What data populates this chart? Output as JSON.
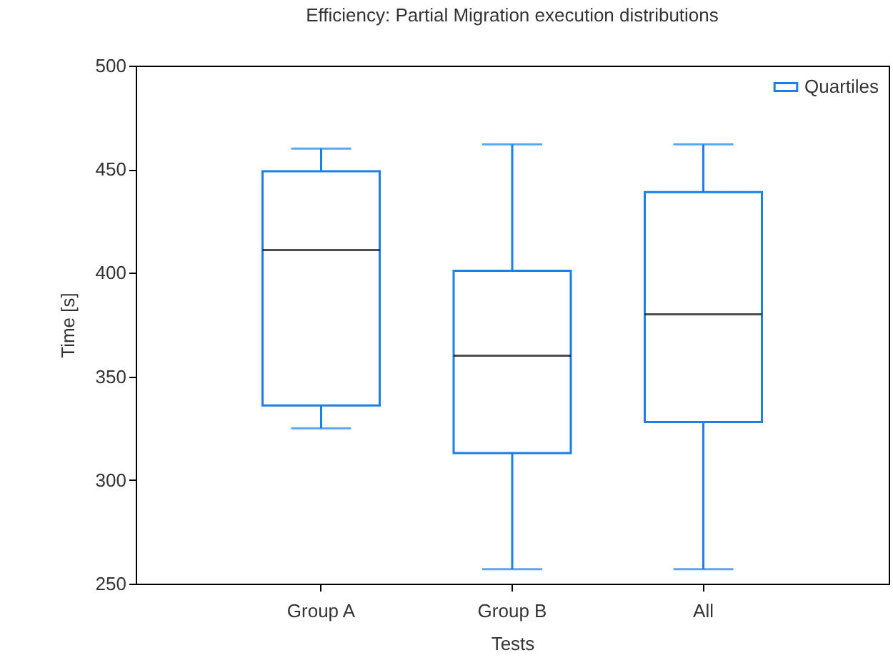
{
  "chart_data": {
    "type": "box",
    "title": "Efficiency: Partial Migration execution distributions",
    "xlabel": "Tests",
    "ylabel": "Time [s]",
    "categories": [
      "Group A",
      "Group B",
      "All"
    ],
    "series": [
      {
        "name": "Quartiles",
        "color": "#1a7fe8",
        "boxes": [
          {
            "low": 325,
            "q1": 336,
            "median": 411,
            "q3": 449,
            "high": 460
          },
          {
            "low": 257,
            "q1": 313,
            "median": 360,
            "q3": 401,
            "high": 462
          },
          {
            "low": 257,
            "q1": 328,
            "median": 380,
            "q3": 439,
            "high": 462
          }
        ]
      }
    ],
    "ylim": [
      250,
      500
    ],
    "yticks": [
      250,
      300,
      350,
      400,
      450,
      500
    ],
    "grid": false,
    "legend": "top right"
  }
}
